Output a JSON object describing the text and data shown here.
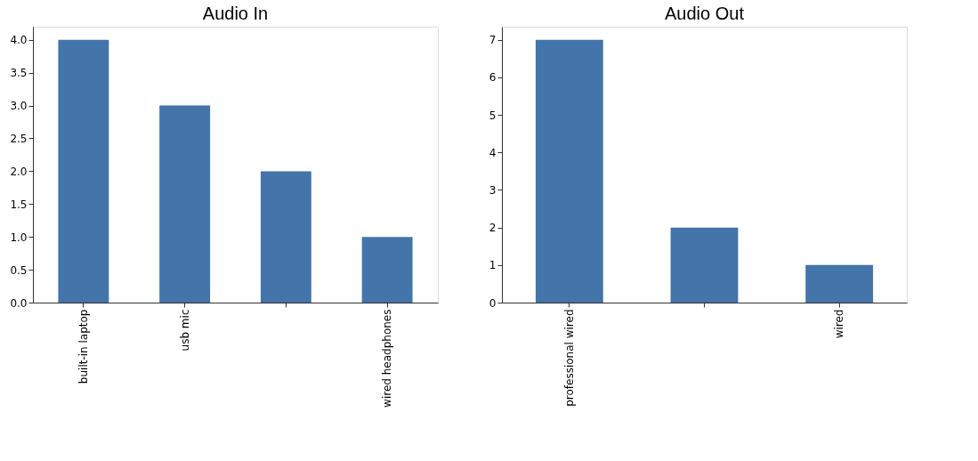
{
  "chart_data": [
    {
      "type": "bar",
      "title": "Audio In",
      "categories": [
        "built-in laptop",
        "usb mic",
        null,
        "wired headphones"
      ],
      "values": [
        4,
        3,
        2,
        1
      ],
      "color": "#4374aa",
      "ylim": [
        0,
        4.2
      ],
      "yticks": [
        {
          "value": 0,
          "label": "0.0"
        },
        {
          "value": 0.5,
          "label": "0.5"
        },
        {
          "value": 1,
          "label": "1.0"
        },
        {
          "value": 1.5,
          "label": "1.5"
        },
        {
          "value": 2,
          "label": "2.0"
        },
        {
          "value": 2.5,
          "label": "2.5"
        },
        {
          "value": 3,
          "label": "3.0"
        },
        {
          "value": 3.5,
          "label": "3.5"
        },
        {
          "value": 4,
          "label": "4.0"
        }
      ],
      "grid": false
    },
    {
      "type": "bar",
      "title": "Audio Out",
      "categories": [
        "professional wired",
        null,
        "wired"
      ],
      "values": [
        7,
        2,
        1
      ],
      "color": "#4374aa",
      "ylim": [
        0,
        7.35
      ],
      "yticks": [
        0,
        1,
        2,
        3,
        4,
        5,
        6,
        7
      ],
      "grid": false
    }
  ]
}
